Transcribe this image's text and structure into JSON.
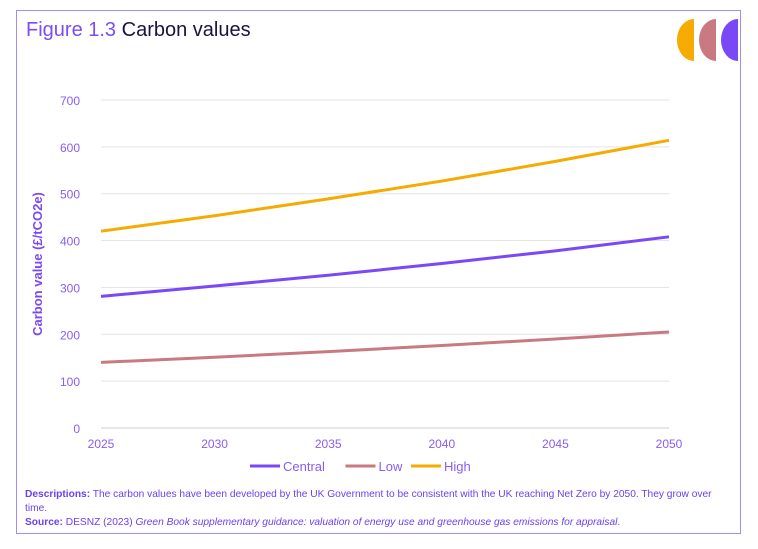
{
  "title_prefix": "Figure 1.3",
  "title_text": "Carbon values",
  "colors": {
    "central": "#7a48f5",
    "low": "#c87a80",
    "high": "#f5ab00",
    "axis_text": "#8a5cf5"
  },
  "notes": {
    "desc_label": "Descriptions:",
    "desc_text": "The carbon values have been developed by the UK Government to be consistent with the UK reaching Net Zero by 2050. They grow over time.",
    "source_label": "Source:",
    "source_plain": "DESNZ (2023)",
    "source_italic": "Green Book supplementary guidance: valuation of energy use and greenhouse gas emissions for appraisal",
    "source_end": "."
  },
  "chart_data": {
    "type": "line",
    "title": "Carbon values",
    "xlabel": "",
    "ylabel": "Carbon value (£/tCO2e)",
    "x": [
      2025,
      2030,
      2035,
      2040,
      2045,
      2050
    ],
    "xticks": [
      "2025",
      "2030",
      "2035",
      "2040",
      "2045",
      "2050"
    ],
    "yticks": [
      "0",
      "100",
      "200",
      "300",
      "400",
      "500",
      "600",
      "700"
    ],
    "ylim": [
      0,
      700
    ],
    "grid": true,
    "legend": "bottom",
    "series": [
      {
        "name": "Central",
        "key": "central",
        "values": [
          281,
          303,
          326,
          351,
          378,
          408
        ]
      },
      {
        "name": "Low",
        "key": "low",
        "values": [
          140,
          151,
          163,
          176,
          190,
          205
        ]
      },
      {
        "name": "High",
        "key": "high",
        "values": [
          420,
          453,
          489,
          527,
          569,
          614
        ]
      }
    ]
  }
}
